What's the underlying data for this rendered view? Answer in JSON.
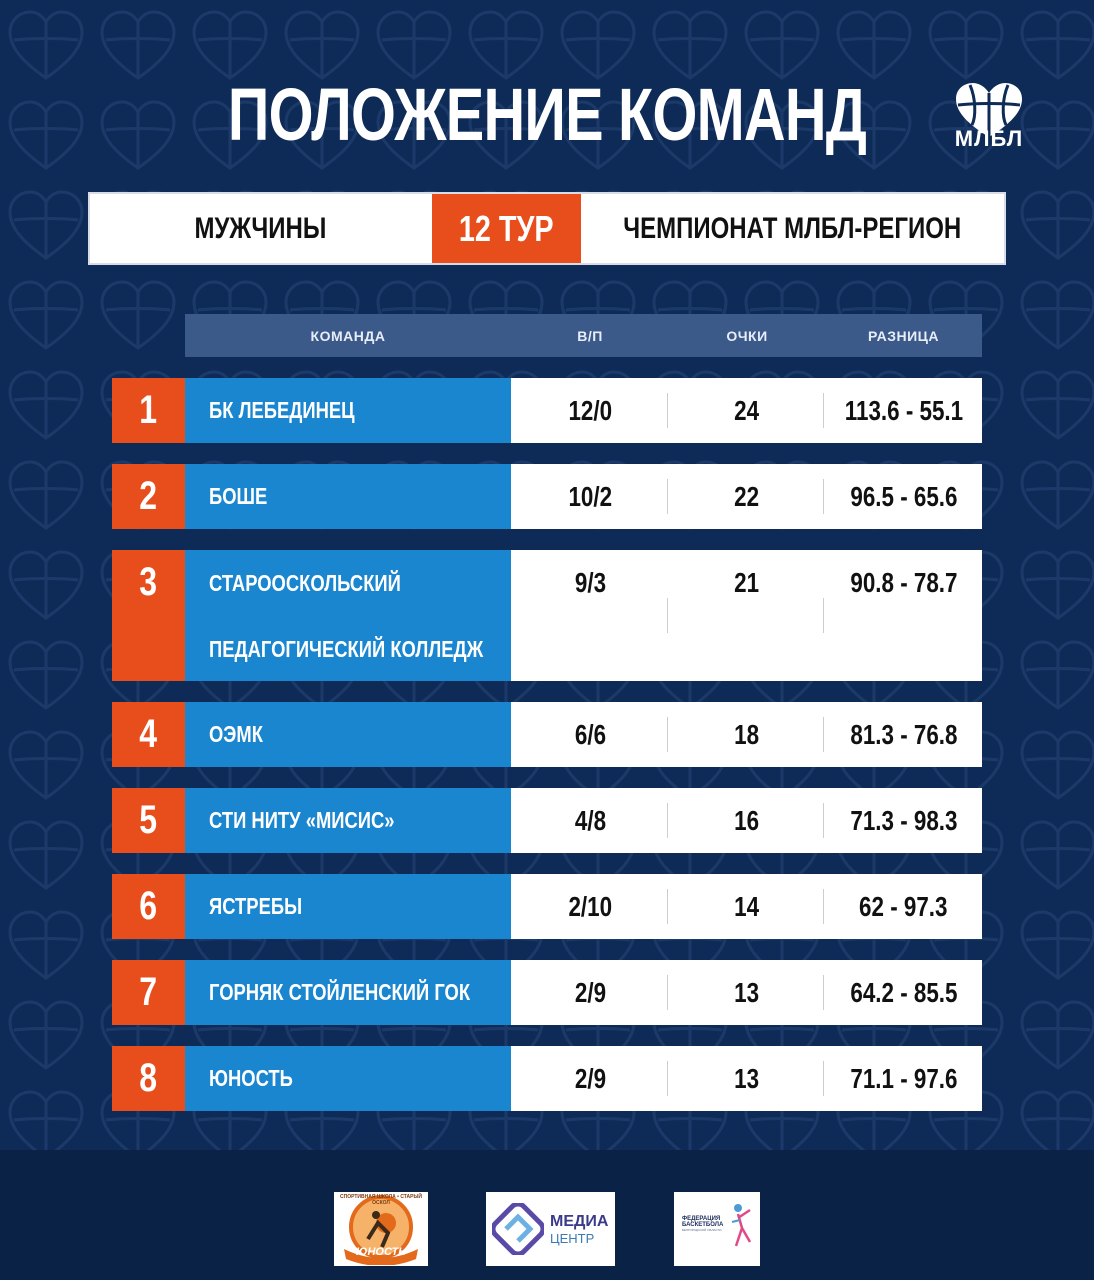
{
  "title": "ПОЛОЖЕНИЕ КОМАНД",
  "logo": {
    "text": "МЛБЛ",
    "icon": "heart-basketball-icon"
  },
  "header": {
    "left": "МУЖЧИНЫ",
    "round": "12 ТУР",
    "right": "ЧЕМПИОНАТ МЛБЛ-РЕГИОН"
  },
  "columns": {
    "team": "КОМАНДА",
    "wl": "В/П",
    "points": "ОЧКИ",
    "diff": "РАЗНИЦА"
  },
  "rows": [
    {
      "rank": "1",
      "team": [
        "БК ЛЕБЕДИНЕЦ"
      ],
      "wl": "12/0",
      "points": "24",
      "diff": "113.6 - 55.1"
    },
    {
      "rank": "2",
      "team": [
        "БОШЕ"
      ],
      "wl": "10/2",
      "points": "22",
      "diff": "96.5 - 65.6"
    },
    {
      "rank": "3",
      "team": [
        "СТАРООСКОЛЬСКИЙ",
        "ПЕДАГОГИЧЕСКИЙ КОЛЛЕДЖ"
      ],
      "wl": "9/3",
      "points": "21",
      "diff": "90.8 - 78.7"
    },
    {
      "rank": "4",
      "team": [
        "ОЭМК"
      ],
      "wl": "6/6",
      "points": "18",
      "diff": "81.3 - 76.8"
    },
    {
      "rank": "5",
      "team": [
        "СТИ НИТУ «МИСИС»"
      ],
      "wl": "4/8",
      "points": "16",
      "diff": "71.3 - 98.3"
    },
    {
      "rank": "6",
      "team": [
        "ЯСТРЕБЫ"
      ],
      "wl": "2/10",
      "points": "14",
      "diff": "62 - 97.3"
    },
    {
      "rank": "7",
      "team": [
        "ГОРНЯК СТОЙЛЕНСКИЙ ГОК"
      ],
      "wl": "2/9",
      "points": "13",
      "diff": "64.2 - 85.5"
    },
    {
      "rank": "8",
      "team": [
        "ЮНОСТЬ"
      ],
      "wl": "2/9",
      "points": "13",
      "diff": "71.1 - 97.6"
    }
  ],
  "sponsors": {
    "sport_school": {
      "label": "ЮНОСТЬ",
      "arc": "СПОРТИВНАЯ ШКОЛА • СТАРЫЙ ОСКОЛ"
    },
    "media": {
      "line1": "МЕДИА",
      "line2": "ЦЕНТР"
    },
    "federation": {
      "line1": "ФЕДЕРАЦИЯ",
      "line2": "БАСКЕТБОЛА",
      "line3": "БЕЛГОРОДСКОЙ ОБЛАСТИ"
    }
  },
  "colors": {
    "background": "#0e2a56",
    "accent_orange": "#e84e1b",
    "team_blue": "#1b86d0",
    "column_header": "#3b5a8a"
  }
}
